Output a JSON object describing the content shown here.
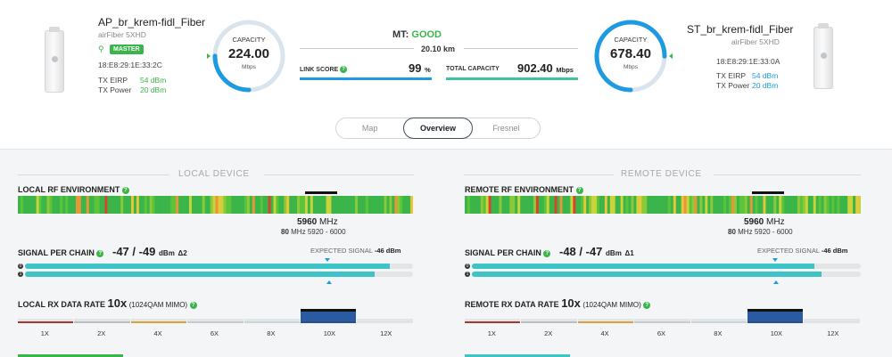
{
  "local": {
    "name": "AP_br_krem-fidl_Fiber",
    "model": "airFiber 5XHD",
    "badge": "MASTER",
    "mac": "18:E8:29:1E:33:2C",
    "tx_eirp_label": "TX EIRP",
    "tx_eirp": "54 dBm",
    "tx_power_label": "TX Power",
    "tx_power": "20 dBm",
    "capacity_label": "CAPACITY",
    "capacity": "224.00",
    "capacity_unit": "Mbps",
    "capacity_fraction": 0.25
  },
  "remote": {
    "name": "ST_br_krem-fidl_Fiber",
    "model": "airFiber 5XHD",
    "mac": "18:E8:29:1E:33:0A",
    "tx_eirp_label": "TX EIRP",
    "tx_eirp": "54 dBm",
    "tx_power_label": "TX Power",
    "tx_power": "20 dBm",
    "capacity_label": "CAPACITY",
    "capacity": "678.40",
    "capacity_unit": "Mbps",
    "capacity_fraction": 0.75
  },
  "link": {
    "mt_label": "MT:",
    "mt_status": "GOOD",
    "distance": "20.10 km",
    "score_label": "LINK SCORE",
    "score_value": "99",
    "score_unit": "%",
    "total_label": "TOTAL CAPACITY",
    "total_value": "902.40",
    "total_unit": "Mbps"
  },
  "tabs": [
    "Map",
    "Overview",
    "Fresnel"
  ],
  "sections": {
    "local_title": "LOCAL DEVICE",
    "remote_title": "REMOTE DEVICE"
  },
  "local_panel": {
    "rf_label": "LOCAL RF ENVIRONMENT",
    "freq": "5960",
    "freq_unit": "MHz",
    "width": "80",
    "width_unit": "MHz",
    "range": "5920 - 6000",
    "chain_label": "SIGNAL PER CHAIN",
    "signal": "-47 / -49",
    "signal_unit": "dBm",
    "delta": "Δ2",
    "expected_label": "EXPECTED SIGNAL",
    "expected_value": "-46 dBm",
    "chain_fill": [
      0.94,
      0.9
    ],
    "rate_label": "LOCAL RX DATA RATE",
    "rate_value": "10x",
    "rate_mode": "(1024QAM MIMO)",
    "rates": [
      "1X",
      "2X",
      "4X",
      "6X",
      "8X",
      "10X",
      "12X"
    ]
  },
  "remote_panel": {
    "rf_label": "REMOTE RF ENVIRONMENT",
    "freq": "5960",
    "freq_unit": "MHz",
    "width": "80",
    "width_unit": "MHz",
    "range": "5920 - 6000",
    "chain_label": "SIGNAL PER CHAIN",
    "signal": "-48 / -47",
    "signal_unit": "dBm",
    "delta": "Δ1",
    "expected_label": "EXPECTED SIGNAL",
    "expected_value": "-46 dBm",
    "chain_fill": [
      0.88,
      0.9
    ],
    "rate_label": "REMOTE RX DATA RATE",
    "rate_value": "10x",
    "rate_mode": "(1024QAM MIMO)",
    "rates": [
      "1X",
      "2X",
      "4X",
      "6X",
      "8X",
      "10X",
      "12X"
    ]
  },
  "colors": {
    "green": "#3bb54a",
    "blue": "#1e9be0",
    "teal": "#3ec3c9"
  }
}
